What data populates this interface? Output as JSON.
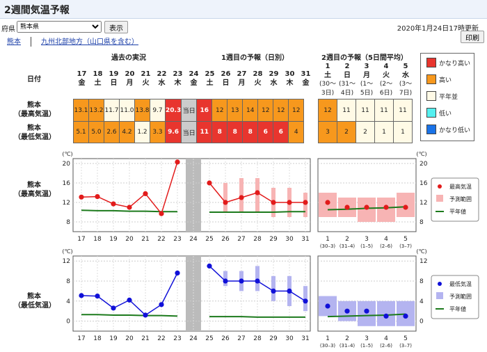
{
  "title": "2週間気温予報",
  "controls": {
    "prefecture_label": "府県",
    "prefecture_value": "熊本県",
    "show_button": "表示",
    "print_button": "印刷"
  },
  "issued": "2020年1月24日17時更新",
  "breadcrumb": [
    "熊本",
    "九州北部地方（山口県を含む）"
  ],
  "sections": {
    "past": "過去の実況",
    "week1": "1週目の予報（日別）",
    "week2": "2週目の予報（5日間平均）"
  },
  "row_labels": {
    "date": "日付",
    "max_l1": "熊本",
    "max_l2": "（最高気温）",
    "min_l1": "熊本",
    "min_l2": "（最低気温）"
  },
  "days": [
    {
      "d": "17",
      "w": "金"
    },
    {
      "d": "18",
      "w": "土"
    },
    {
      "d": "19",
      "w": "日"
    },
    {
      "d": "20",
      "w": "月"
    },
    {
      "d": "21",
      "w": "火"
    },
    {
      "d": "22",
      "w": "水"
    },
    {
      "d": "23",
      "w": "木"
    },
    {
      "d": "24",
      "w": "金"
    },
    {
      "d": "25",
      "w": "土"
    },
    {
      "d": "26",
      "w": "日"
    },
    {
      "d": "27",
      "w": "月"
    },
    {
      "d": "28",
      "w": "火"
    },
    {
      "d": "29",
      "w": "水"
    },
    {
      "d": "30",
      "w": "木"
    },
    {
      "d": "31",
      "w": "金"
    }
  ],
  "periods": [
    {
      "d": "1",
      "w": "土",
      "r1": "(30～",
      "r2": "3日)"
    },
    {
      "d": "2",
      "w": "日",
      "r1": "(31～",
      "r2": "4日)"
    },
    {
      "d": "3",
      "w": "月",
      "r1": "(1～",
      "r2": "5日)"
    },
    {
      "d": "4",
      "w": "火",
      "r1": "(2～",
      "r2": "6日)"
    },
    {
      "d": "5",
      "w": "水",
      "r1": "(3～",
      "r2": "7日)"
    }
  ],
  "today_label": "当日",
  "max_row": [
    {
      "v": "13.1",
      "c": "warm"
    },
    {
      "v": "13.2",
      "c": "warm"
    },
    {
      "v": "11.7",
      "c": "norm"
    },
    {
      "v": "11.0",
      "c": "norm"
    },
    {
      "v": "13.8",
      "c": "warm"
    },
    {
      "v": "9.7",
      "c": "norm"
    },
    {
      "v": "20.3",
      "c": "hot"
    },
    {
      "v": "当日",
      "c": "gray"
    },
    {
      "v": "16",
      "c": "hot"
    },
    {
      "v": "12",
      "c": "warm"
    },
    {
      "v": "13",
      "c": "warm"
    },
    {
      "v": "14",
      "c": "warm"
    },
    {
      "v": "12",
      "c": "warm"
    },
    {
      "v": "12",
      "c": "warm"
    },
    {
      "v": "12",
      "c": "warm"
    }
  ],
  "min_row": [
    {
      "v": "5.1",
      "c": "warm"
    },
    {
      "v": "5.0",
      "c": "warm"
    },
    {
      "v": "2.6",
      "c": "warm"
    },
    {
      "v": "4.2",
      "c": "warm"
    },
    {
      "v": "1.2",
      "c": "norm"
    },
    {
      "v": "3.3",
      "c": "warm"
    },
    {
      "v": "9.6",
      "c": "hot"
    },
    {
      "v": "当日",
      "c": "gray"
    },
    {
      "v": "11",
      "c": "hot"
    },
    {
      "v": "8",
      "c": "hot"
    },
    {
      "v": "8",
      "c": "hot"
    },
    {
      "v": "8",
      "c": "hot"
    },
    {
      "v": "6",
      "c": "hot"
    },
    {
      "v": "6",
      "c": "hot"
    },
    {
      "v": "4",
      "c": "warm"
    }
  ],
  "week2_max": [
    {
      "v": "12",
      "c": "warm"
    },
    {
      "v": "11",
      "c": "norm"
    },
    {
      "v": "11",
      "c": "norm"
    },
    {
      "v": "11",
      "c": "norm"
    },
    {
      "v": "11",
      "c": "norm"
    }
  ],
  "week2_min": [
    {
      "v": "3",
      "c": "warm"
    },
    {
      "v": "2",
      "c": "warm"
    },
    {
      "v": "2",
      "c": "norm"
    },
    {
      "v": "1",
      "c": "norm"
    },
    {
      "v": "1",
      "c": "norm"
    }
  ],
  "class_legend": [
    {
      "label": "かなり高い",
      "color": "#e8352e"
    },
    {
      "label": "高い",
      "color": "#f7981d"
    },
    {
      "label": "平年並",
      "color": "#fffae6"
    },
    {
      "label": "低い",
      "color": "#55f0f0"
    },
    {
      "label": "かなり低い",
      "color": "#1a73e8"
    }
  ],
  "chart_data": [
    {
      "type": "line",
      "title": "熊本（最高気温）",
      "ylabel": "(℃)",
      "ylim": [
        6,
        21
      ],
      "yticks": [
        8,
        12,
        16,
        20
      ],
      "x": [
        "17",
        "18",
        "19",
        "20",
        "21",
        "22",
        "23",
        "24",
        "25",
        "26",
        "27",
        "28",
        "29",
        "30",
        "31"
      ],
      "observed": [
        13.1,
        13.2,
        11.7,
        11.0,
        13.8,
        9.7,
        20.3
      ],
      "forecast": [
        16,
        12,
        13,
        14,
        12,
        12,
        12
      ],
      "range": [
        [
          16,
          16
        ],
        [
          10,
          16
        ],
        [
          10,
          17
        ],
        [
          10,
          17
        ],
        [
          9,
          15
        ],
        [
          9,
          15
        ],
        [
          9,
          14
        ]
      ],
      "normal_daily": [
        10.4,
        10.3,
        10.3,
        10.2,
        10.2,
        10.1,
        10.1,
        null,
        10.0,
        10.0,
        10.0,
        10.0,
        10.0,
        10.1,
        10.1
      ],
      "week2": {
        "x": [
          "1",
          "2",
          "3",
          "4",
          "5"
        ],
        "avg": [
          12,
          11,
          11,
          11,
          11
        ],
        "range": [
          [
            9,
            14
          ],
          [
            9,
            13
          ],
          [
            8,
            13
          ],
          [
            8,
            13
          ],
          [
            9,
            14
          ]
        ],
        "normal": [
          10.5,
          10.6,
          10.8,
          10.9,
          11.1
        ]
      },
      "legend": [
        "最高気温",
        "予測範囲",
        "平年値"
      ]
    },
    {
      "type": "line",
      "title": "熊本（最低気温）",
      "ylabel": "(℃)",
      "ylim": [
        -2,
        13
      ],
      "yticks": [
        0,
        4,
        8,
        12
      ],
      "x": [
        "17",
        "18",
        "19",
        "20",
        "21",
        "22",
        "23",
        "24",
        "25",
        "26",
        "27",
        "28",
        "29",
        "30",
        "31"
      ],
      "observed": [
        5.1,
        5.0,
        2.6,
        4.2,
        1.2,
        3.3,
        9.6
      ],
      "forecast": [
        11,
        8,
        8,
        8,
        6,
        6,
        4
      ],
      "range": [
        [
          11,
          11
        ],
        [
          7,
          10
        ],
        [
          6,
          10
        ],
        [
          6,
          11
        ],
        [
          4,
          9
        ],
        [
          3,
          9
        ],
        [
          2,
          7
        ]
      ],
      "normal_daily": [
        1.3,
        1.3,
        1.2,
        1.2,
        1.1,
        1.1,
        1.0,
        null,
        0.9,
        0.9,
        0.9,
        0.8,
        0.8,
        0.8,
        0.8
      ],
      "week2": {
        "x": [
          "1",
          "2",
          "3",
          "4",
          "5"
        ],
        "avg": [
          3,
          2,
          2,
          1,
          1
        ],
        "range": [
          [
            1,
            5
          ],
          [
            0,
            4
          ],
          [
            -1,
            4
          ],
          [
            -1,
            4
          ],
          [
            -1,
            4
          ]
        ],
        "normal": [
          0.9,
          1.0,
          1.1,
          1.2,
          1.4
        ]
      },
      "legend": [
        "最低気温",
        "予測範囲",
        "平年値"
      ]
    }
  ]
}
